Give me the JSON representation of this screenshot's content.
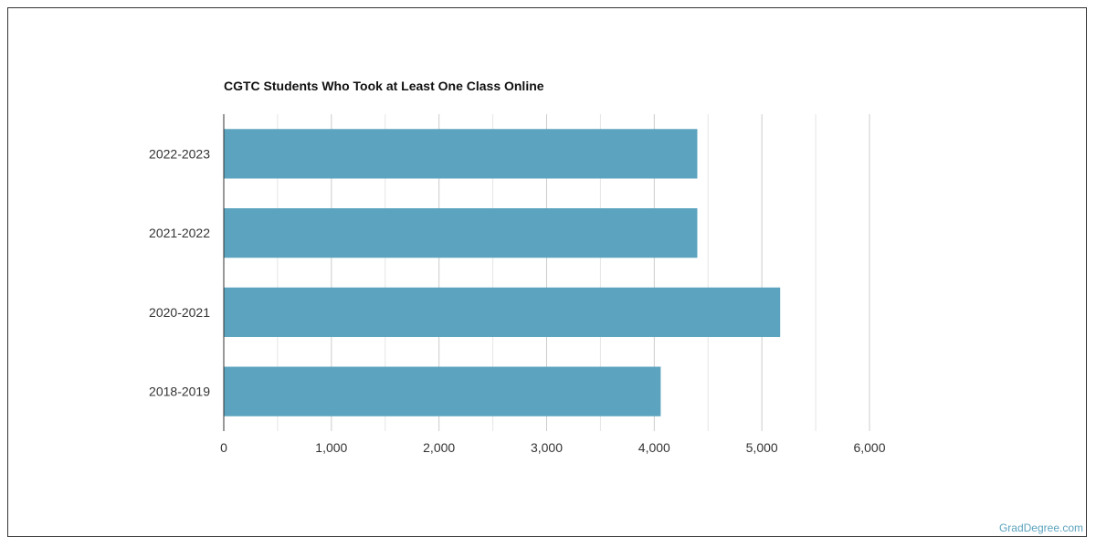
{
  "chart_data": {
    "type": "bar",
    "orientation": "horizontal",
    "title": "CGTC Students Who Took at Least One Class Online",
    "categories": [
      "2022-2023",
      "2021-2022",
      "2020-2021",
      "2018-2019"
    ],
    "values": [
      4400,
      4400,
      5170,
      4060
    ],
    "xlim": [
      0,
      6000
    ],
    "xticks": [
      "0",
      "1,000",
      "2,000",
      "3,000",
      "4,000",
      "5,000",
      "6,000"
    ],
    "xtick_values": [
      0,
      1000,
      2000,
      3000,
      4000,
      5000,
      6000
    ],
    "grid": true,
    "bar_color": "#5ba3be",
    "grid_color": "#cccccc",
    "minor_grid_color": "#e6e6e6"
  },
  "watermark": "GradDegree.com"
}
